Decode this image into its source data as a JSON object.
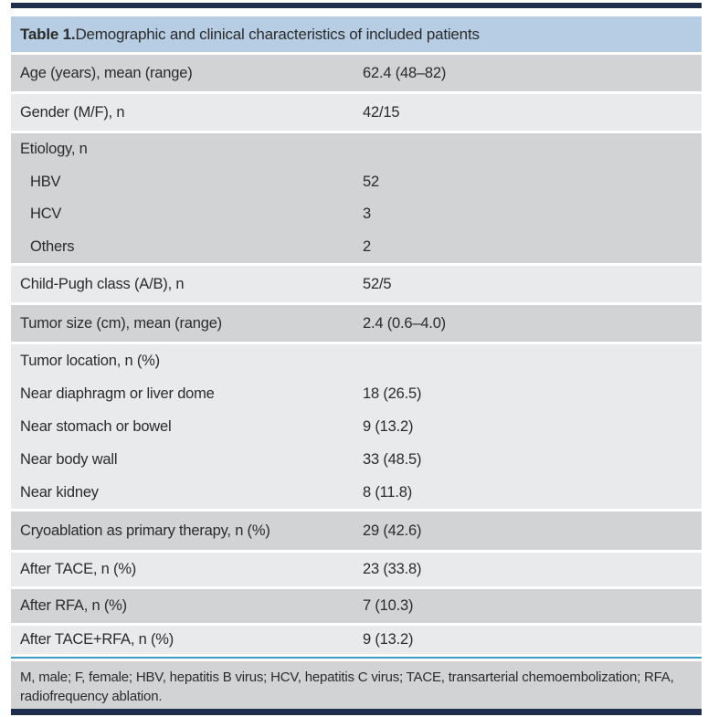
{
  "colors": {
    "header_bg": "#b7cde3",
    "row_dark": "#d2d3d5",
    "row_light": "#e9eaec",
    "rule_blue": "#3a9dc6",
    "bar_navy": "#1f2e4d",
    "text": "#2b2b2b"
  },
  "table": {
    "title_bold": "Table 1.",
    "title_rest": " Demographic and clinical characteristics of included patients",
    "blocks": [
      {
        "shade": "dark",
        "height": 40,
        "lines": [
          {
            "label": "Age (years), mean (range)",
            "value": "62.4 (48–82)"
          }
        ]
      },
      {
        "shade": "light",
        "height": 40,
        "lines": [
          {
            "label": "Gender (M/F), n",
            "value": "42/15"
          }
        ]
      },
      {
        "shade": "dark",
        "height": 142,
        "lines": [
          {
            "label": "Etiology, n",
            "value": ""
          },
          {
            "label": "HBV",
            "value": "52",
            "indent": true
          },
          {
            "label": "HCV",
            "value": "3",
            "indent": true
          },
          {
            "label": "Others",
            "value": "2",
            "indent": true
          }
        ]
      },
      {
        "shade": "light",
        "height": 40,
        "lines": [
          {
            "label": "Child-Pugh class (A/B), n",
            "value": "52/5"
          }
        ]
      },
      {
        "shade": "dark",
        "height": 40,
        "lines": [
          {
            "label": "Tumor size (cm), mean (range)",
            "value": "2.4 (0.6–4.0)"
          }
        ]
      },
      {
        "shade": "light",
        "height": 180,
        "lines": [
          {
            "label": "Tumor location, n (%)",
            "value": ""
          },
          {
            "label": "Near diaphragm or liver dome",
            "value": "18 (26.5)"
          },
          {
            "label": "Near stomach or bowel",
            "value": "9 (13.2)"
          },
          {
            "label": "Near body wall",
            "value": "33 (48.5)"
          },
          {
            "label": "Near kidney",
            "value": "8 (11.8)"
          }
        ]
      },
      {
        "shade": "dark",
        "height": 42,
        "lines": [
          {
            "label": "Cryoablation as primary therapy, n (%)",
            "value": "29 (42.6)"
          }
        ]
      },
      {
        "shade": "light",
        "height": 37,
        "lines": [
          {
            "label": "After TACE, n (%)",
            "value": "23 (33.8)"
          }
        ]
      },
      {
        "shade": "dark",
        "height": 37,
        "lines": [
          {
            "label": "After RFA, n (%)",
            "value": "7 (10.3)"
          }
        ]
      },
      {
        "shade": "light",
        "height": 31,
        "lines": [
          {
            "label": "After TACE+RFA, n (%)",
            "value": "9 (13.2)"
          }
        ]
      }
    ],
    "footnote": "M, male; F, female; HBV, hepatitis B virus; HCV, hepatitis C virus; TACE, transarterial chemoembolization; RFA, radiofrequency ablation."
  }
}
